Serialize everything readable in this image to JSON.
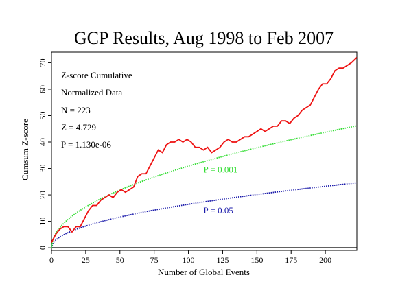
{
  "chart_data": {
    "type": "line",
    "title": "GCP Results, Aug 1998 to Feb 2007",
    "xlabel": "Number of Global Events",
    "ylabel": "Cumsum Z-score",
    "xlim": [
      0,
      223
    ],
    "ylim": [
      -1,
      74
    ],
    "x_ticks": [
      0,
      25,
      50,
      75,
      100,
      125,
      150,
      175,
      200
    ],
    "y_ticks": [
      0,
      10,
      20,
      30,
      40,
      50,
      60,
      70
    ],
    "grid": false,
    "annotations": [
      "Z-score Cumulative",
      "Normalized Data",
      "N = 223",
      "Z = 4.729",
      "P = 1.130e-06"
    ],
    "curve_labels": [
      {
        "text": "P = 0.001",
        "color": "#33dd33",
        "x": 111,
        "y": 28.5
      },
      {
        "text": "P = 0.05",
        "color": "#1a1aaa",
        "x": 111,
        "y": 13
      }
    ],
    "series": [
      {
        "color": "#ee1111",
        "style": "solid",
        "x": [
          0,
          3,
          6,
          9,
          12,
          15,
          18,
          21,
          24,
          27,
          30,
          33,
          36,
          39,
          42,
          45,
          48,
          51,
          54,
          57,
          60,
          63,
          66,
          69,
          72,
          75,
          78,
          81,
          84,
          87,
          90,
          93,
          96,
          99,
          102,
          105,
          108,
          111,
          114,
          117,
          120,
          123,
          126,
          129,
          132,
          135,
          138,
          141,
          144,
          147,
          150,
          153,
          156,
          159,
          162,
          165,
          168,
          171,
          174,
          177,
          180,
          183,
          186,
          189,
          192,
          195,
          198,
          201,
          204,
          207,
          210,
          213,
          216,
          219,
          221,
          223
        ],
        "y": [
          2,
          5,
          7,
          8,
          8,
          6,
          8,
          8,
          11,
          14,
          16,
          16,
          18,
          19,
          20,
          19,
          21,
          22,
          21,
          22,
          23,
          27,
          28,
          28,
          31,
          34,
          37,
          36,
          39,
          40,
          40,
          41,
          40,
          41,
          40,
          38,
          38,
          37,
          38,
          36,
          37,
          38,
          40,
          41,
          40,
          40,
          41,
          42,
          42,
          43,
          44,
          45,
          44,
          45,
          46,
          46,
          48,
          48,
          47,
          49,
          50,
          52,
          53,
          54,
          57,
          60,
          62,
          62,
          64,
          67,
          68,
          68,
          69,
          70,
          71,
          72
        ]
      },
      {
        "color": "#33dd33",
        "style": "dotted",
        "formula": "3.09 * sqrt(n)"
      },
      {
        "color": "#1a1aaa",
        "style": "dotted",
        "formula": "1.645 * sqrt(n)"
      }
    ]
  }
}
